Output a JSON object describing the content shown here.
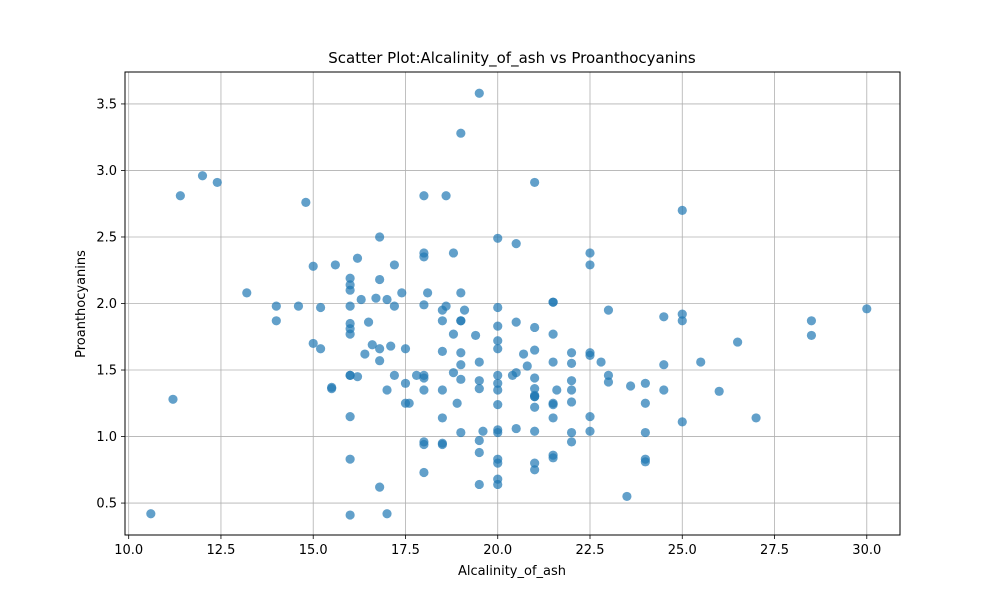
{
  "chart_data": {
    "type": "scatter",
    "title": "Scatter Plot:Alcalinity_of_ash vs Proanthocyanins",
    "xlabel": "Alcalinity_of_ash",
    "ylabel": "Proanthocyanins",
    "xlim": [
      9.9,
      30.9
    ],
    "ylim": [
      0.26,
      3.74
    ],
    "xticks": [
      10.0,
      12.5,
      15.0,
      17.5,
      20.0,
      22.5,
      25.0,
      27.5,
      30.0
    ],
    "xtick_labels": [
      "10.0",
      "12.5",
      "15.0",
      "17.5",
      "20.0",
      "22.5",
      "25.0",
      "27.5",
      "30.0"
    ],
    "yticks": [
      0.5,
      1.0,
      1.5,
      2.0,
      2.5,
      3.0,
      3.5
    ],
    "ytick_labels": [
      "0.5",
      "1.0",
      "1.5",
      "2.0",
      "2.5",
      "3.0",
      "3.5"
    ],
    "grid": true,
    "marker_color": "#1f77b4",
    "marker_alpha": 0.7,
    "series": [
      {
        "x": [
          10.6,
          11.2,
          11.4,
          12.0,
          12.4,
          13.2,
          14.0,
          14.0,
          14.6,
          14.8,
          15.0,
          15.0,
          15.2,
          15.2,
          15.5,
          15.5,
          15.6,
          16.0,
          16.0,
          16.0,
          16.0,
          16.0,
          16.0,
          16.0,
          16.0,
          16.0,
          16.0,
          16.0,
          16.0,
          16.2,
          16.2,
          16.3,
          16.4,
          16.5,
          16.6,
          16.7,
          16.8,
          16.8,
          16.8,
          16.8,
          16.8,
          17.0,
          17.0,
          17.0,
          17.1,
          17.2,
          17.2,
          17.2,
          17.4,
          17.5,
          17.5,
          17.5,
          17.6,
          17.8,
          18.0,
          18.0,
          18.0,
          18.0,
          18.0,
          18.0,
          18.0,
          18.0,
          18.0,
          18.0,
          18.1,
          18.5,
          18.5,
          18.5,
          18.5,
          18.5,
          18.5,
          18.5,
          18.6,
          18.6,
          18.8,
          18.8,
          18.8,
          18.9,
          19.0,
          19.0,
          19.0,
          19.0,
          19.0,
          19.0,
          19.0,
          19.0,
          19.1,
          19.4,
          19.5,
          19.5,
          19.5,
          19.5,
          19.5,
          19.5,
          19.5,
          19.6,
          20.0,
          20.0,
          20.0,
          20.0,
          20.0,
          20.0,
          20.0,
          20.0,
          20.0,
          20.0,
          20.0,
          20.0,
          20.0,
          20.0,
          20.0,
          20.4,
          20.5,
          20.5,
          20.5,
          20.5,
          20.7,
          20.8,
          21.0,
          21.0,
          21.0,
          21.0,
          21.0,
          21.0,
          21.0,
          21.0,
          21.0,
          21.0,
          21.0,
          21.0,
          21.5,
          21.5,
          21.5,
          21.5,
          21.5,
          21.5,
          21.5,
          21.5,
          21.5,
          21.6,
          22.0,
          22.0,
          22.0,
          22.0,
          22.0,
          22.0,
          22.0,
          22.5,
          22.5,
          22.5,
          22.5,
          22.5,
          22.5,
          22.8,
          23.0,
          23.0,
          23.0,
          23.5,
          23.6,
          24.0,
          24.0,
          24.0,
          24.0,
          24.0,
          24.5,
          24.5,
          24.5,
          25.0,
          25.0,
          25.0,
          25.0,
          25.5,
          26.0,
          26.5,
          27.0,
          28.5,
          28.5,
          30.0
        ],
        "y": [
          0.42,
          1.28,
          2.81,
          2.96,
          2.91,
          2.08,
          1.98,
          1.87,
          1.98,
          2.76,
          2.28,
          1.7,
          1.97,
          1.66,
          1.37,
          1.36,
          2.29,
          2.19,
          2.14,
          2.1,
          1.98,
          1.85,
          1.81,
          1.77,
          1.46,
          1.15,
          0.83,
          0.41,
          1.46,
          2.34,
          1.45,
          2.03,
          1.62,
          1.86,
          1.69,
          2.04,
          2.5,
          2.18,
          1.66,
          1.57,
          0.62,
          2.03,
          1.35,
          0.42,
          1.68,
          2.29,
          1.98,
          1.46,
          2.08,
          1.66,
          1.4,
          1.25,
          1.25,
          1.46,
          2.81,
          2.38,
          2.35,
          1.99,
          1.46,
          1.44,
          1.35,
          0.96,
          0.94,
          0.73,
          2.08,
          1.95,
          1.87,
          1.64,
          1.35,
          1.14,
          0.95,
          0.94,
          2.81,
          1.98,
          2.38,
          1.77,
          1.48,
          1.25,
          3.28,
          2.08,
          1.87,
          1.87,
          1.63,
          1.54,
          1.43,
          1.03,
          1.95,
          1.76,
          3.58,
          1.56,
          1.42,
          1.36,
          0.97,
          0.88,
          0.64,
          1.04,
          2.49,
          1.97,
          1.83,
          1.72,
          1.66,
          1.46,
          1.4,
          1.35,
          1.24,
          1.05,
          1.03,
          0.83,
          0.8,
          0.68,
          0.64,
          1.46,
          2.45,
          1.86,
          1.48,
          1.06,
          1.62,
          1.53,
          2.91,
          1.82,
          1.65,
          1.44,
          1.36,
          1.31,
          1.3,
          1.22,
          1.04,
          0.8,
          0.75,
          1.3,
          2.01,
          2.01,
          1.77,
          1.56,
          1.25,
          1.14,
          0.86,
          0.84,
          1.24,
          1.35,
          1.63,
          1.55,
          1.42,
          1.35,
          1.26,
          1.03,
          0.96,
          2.38,
          2.29,
          1.63,
          1.61,
          1.15,
          1.04,
          1.56,
          1.95,
          1.46,
          1.41,
          0.55,
          1.38,
          1.4,
          1.25,
          1.03,
          0.83,
          0.81,
          1.9,
          1.54,
          1.35,
          2.7,
          1.92,
          1.87,
          1.11,
          1.56,
          1.34,
          1.71,
          1.14,
          1.87,
          1.76,
          1.96
        ]
      }
    ]
  }
}
